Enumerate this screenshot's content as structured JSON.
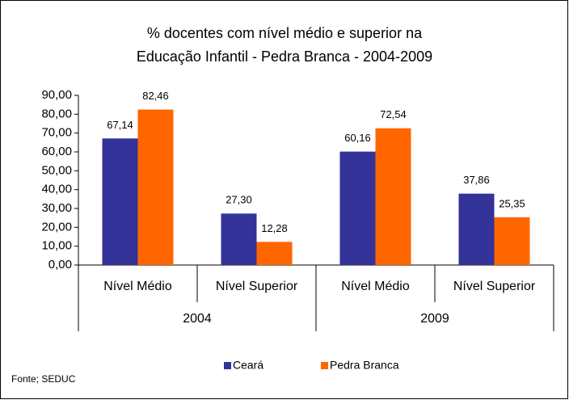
{
  "chart_data": {
    "type": "bar",
    "title": "% docentes com nível médio e superior na",
    "subtitle": "Educação Infantil - Pedra Branca - 2004-2009",
    "categories": [
      "Nível Médio",
      "Nível Superior",
      "Nível Médio",
      "Nível Superior"
    ],
    "group_labels": [
      "2004",
      "2009"
    ],
    "series": [
      {
        "name": "Ceará",
        "color": "#333399",
        "values": [
          67.14,
          27.3,
          60.16,
          37.86
        ],
        "value_labels": [
          "67,14",
          "27,30",
          "60,16",
          "37,86"
        ]
      },
      {
        "name": "Pedra Branca",
        "color": "#ff6600",
        "values": [
          82.46,
          12.28,
          72.54,
          25.35
        ],
        "value_labels": [
          "82,46",
          "12,28",
          "72,54",
          "25,35"
        ]
      }
    ],
    "ylim": [
      0,
      90
    ],
    "yticks": [
      {
        "value": 0,
        "label": "0,00"
      },
      {
        "value": 10,
        "label": "10,00"
      },
      {
        "value": 20,
        "label": "20,00"
      },
      {
        "value": 30,
        "label": "30,00"
      },
      {
        "value": 40,
        "label": "40,00"
      },
      {
        "value": 50,
        "label": "50,00"
      },
      {
        "value": 60,
        "label": "60,00"
      },
      {
        "value": 70,
        "label": "70,00"
      },
      {
        "value": 80,
        "label": "80,00"
      },
      {
        "value": 90,
        "label": "90,00"
      }
    ],
    "legend": "bottom",
    "source": "Fonte; SEDUC"
  }
}
